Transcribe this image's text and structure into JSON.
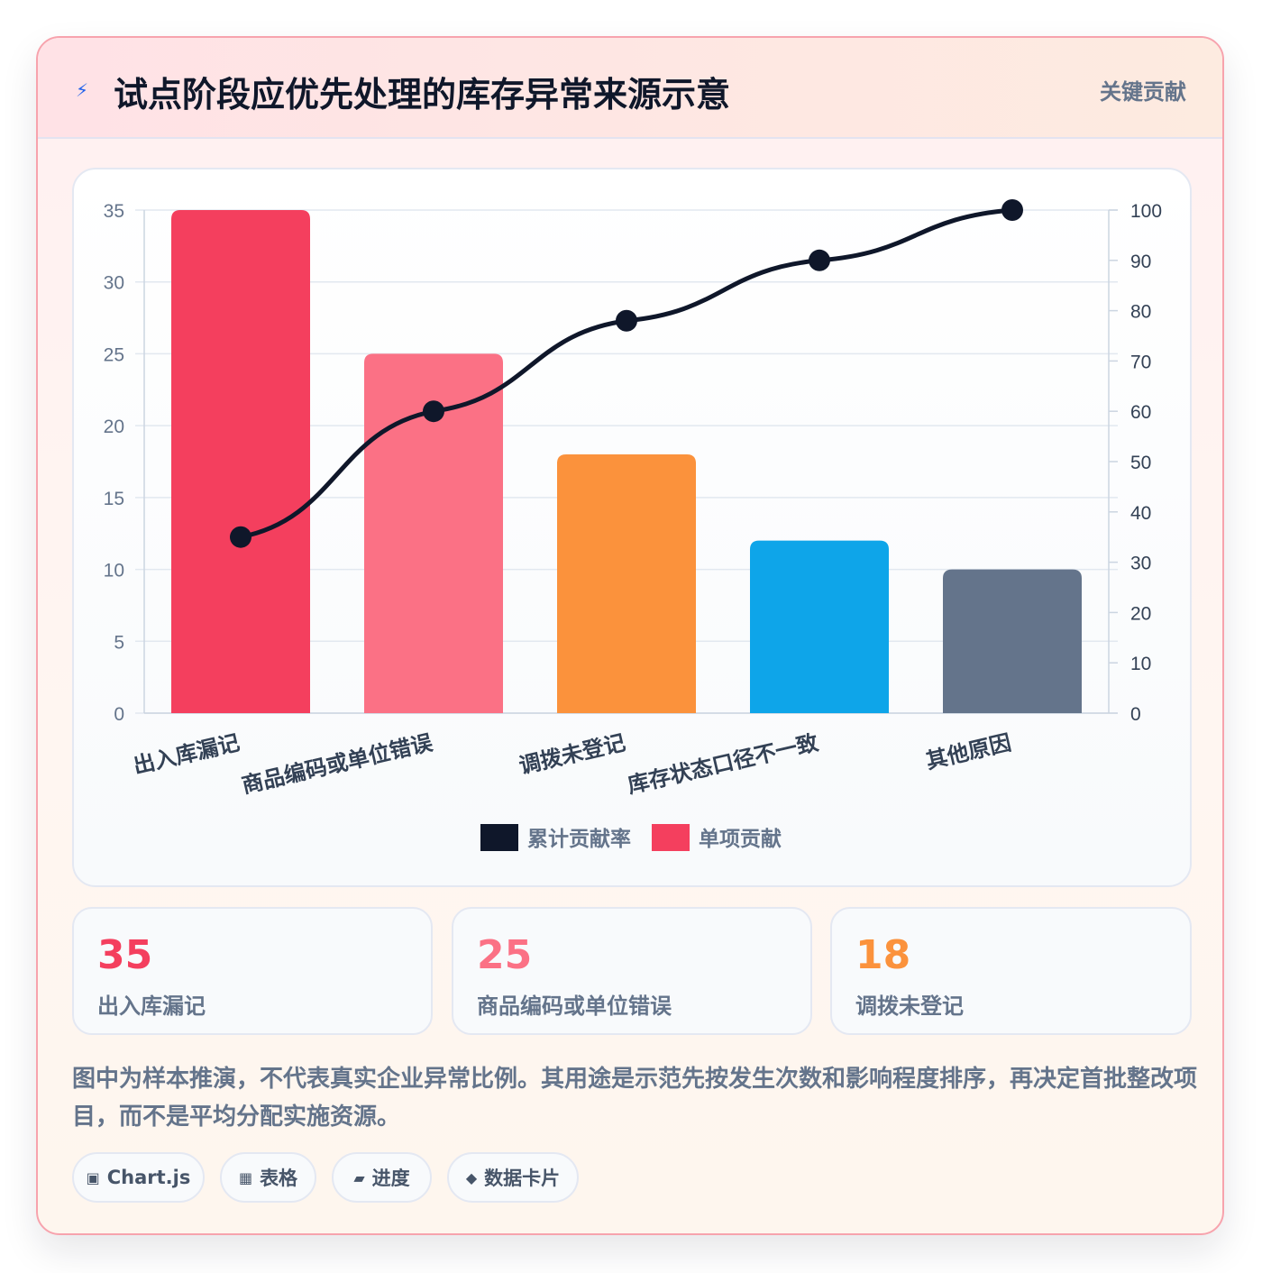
{
  "header": {
    "icon": "lightning-icon",
    "title": "试点阶段应优先处理的库存异常来源示意",
    "tag": "关键贡献"
  },
  "chart_data": {
    "type": "bar",
    "categories": [
      "出入库漏记",
      "商品编码或单位错误",
      "调拨未登记",
      "库存状态口径不一致",
      "其他原因"
    ],
    "series": [
      {
        "name": "单项贡献",
        "type": "bar",
        "axis": "left",
        "values": [
          35,
          25,
          18,
          12,
          10
        ],
        "colors": [
          "#f43f5e",
          "#fb7185",
          "#fb923c",
          "#0ea5e9",
          "#64748b"
        ]
      },
      {
        "name": "累计贡献率",
        "type": "line",
        "axis": "right",
        "values": [
          35,
          60,
          78,
          90,
          100
        ],
        "color": "#0f172a"
      }
    ],
    "ylim": [
      0,
      35
    ],
    "yticks": [
      0,
      5,
      10,
      15,
      20,
      25,
      30,
      35
    ],
    "y2lim": [
      0,
      100
    ],
    "y2ticks": [
      0,
      10,
      20,
      30,
      40,
      50,
      60,
      70,
      80,
      90,
      100
    ],
    "legend": [
      "累计贡献率",
      "单项贡献"
    ],
    "legend_colors": [
      "#0f172a",
      "#f43f5e"
    ],
    "legend_position": "bottom",
    "grid": true
  },
  "stats": [
    {
      "value": "35",
      "label": "出入库漏记",
      "color": "#f43f5e"
    },
    {
      "value": "25",
      "label": "商品编码或单位错误",
      "color": "#fb7185"
    },
    {
      "value": "18",
      "label": "调拨未登记",
      "color": "#fb923c"
    }
  ],
  "note": "图中为样本推演，不代表真实企业异常比例。其用途是示范先按发生次数和影响程度排序，再决定首批整改项目，而不是平均分配实施资源。",
  "chips": [
    {
      "icon": "▣",
      "label": "Chart.js"
    },
    {
      "icon": "▦",
      "label": "表格"
    },
    {
      "icon": "▰",
      "label": "进度"
    },
    {
      "icon": "◆",
      "label": "数据卡片"
    }
  ]
}
